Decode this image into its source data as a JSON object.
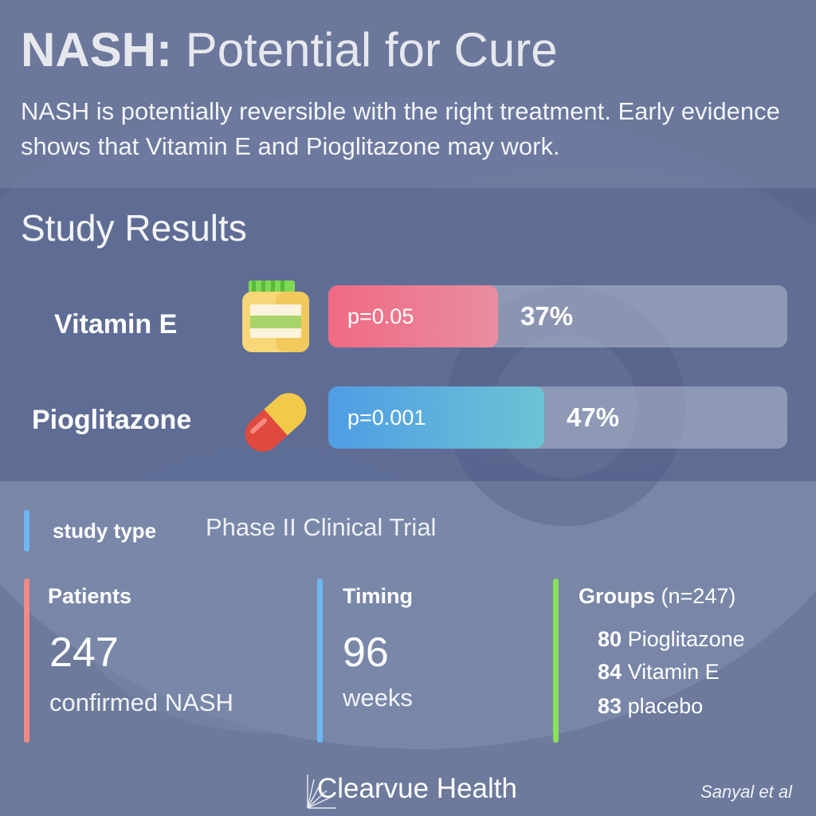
{
  "header": {
    "title_bold": "NASH:",
    "title_rest": " Potential for Cure",
    "subtitle": "NASH is potentially reversible with the right treatment. Early evidence shows that Vitamin E and Pioglitazone may work."
  },
  "section_title": "Study Results",
  "chart_data": {
    "type": "bar",
    "orientation": "horizontal",
    "categories": [
      "Vitamin E",
      "Pioglitazone"
    ],
    "values": [
      37,
      47
    ],
    "value_labels": [
      "37%",
      "47%"
    ],
    "p_values": [
      "p=0.05",
      "p=0.001"
    ],
    "xlim": [
      0,
      100
    ],
    "colors": [
      "#ec6f86",
      "#5fa4df"
    ],
    "icons": [
      "vitamin-jar-icon",
      "pill-capsule-icon"
    ]
  },
  "study": {
    "label": "study type",
    "value": "Phase II Clinical Trial"
  },
  "patients": {
    "heading": "Patients",
    "number": "247",
    "caption": "confirmed NASH"
  },
  "timing": {
    "heading": "Timing",
    "number": "96",
    "caption": "weeks"
  },
  "groups": {
    "heading": "Groups",
    "n_label": "(n=247)",
    "items": [
      {
        "count": "80",
        "label": "Pioglitazone"
      },
      {
        "count": "84",
        "label": "Vitamin E"
      },
      {
        "count": "83",
        "label": "placebo"
      }
    ]
  },
  "footer": {
    "brand": "Clearvue Health",
    "citation": "Sanyal et al"
  },
  "colors": {
    "patients_accent": "#ef8a86",
    "timing_accent": "#6cb7f2",
    "groups_accent": "#8be05a",
    "study_accent": "#6cb7f2"
  }
}
